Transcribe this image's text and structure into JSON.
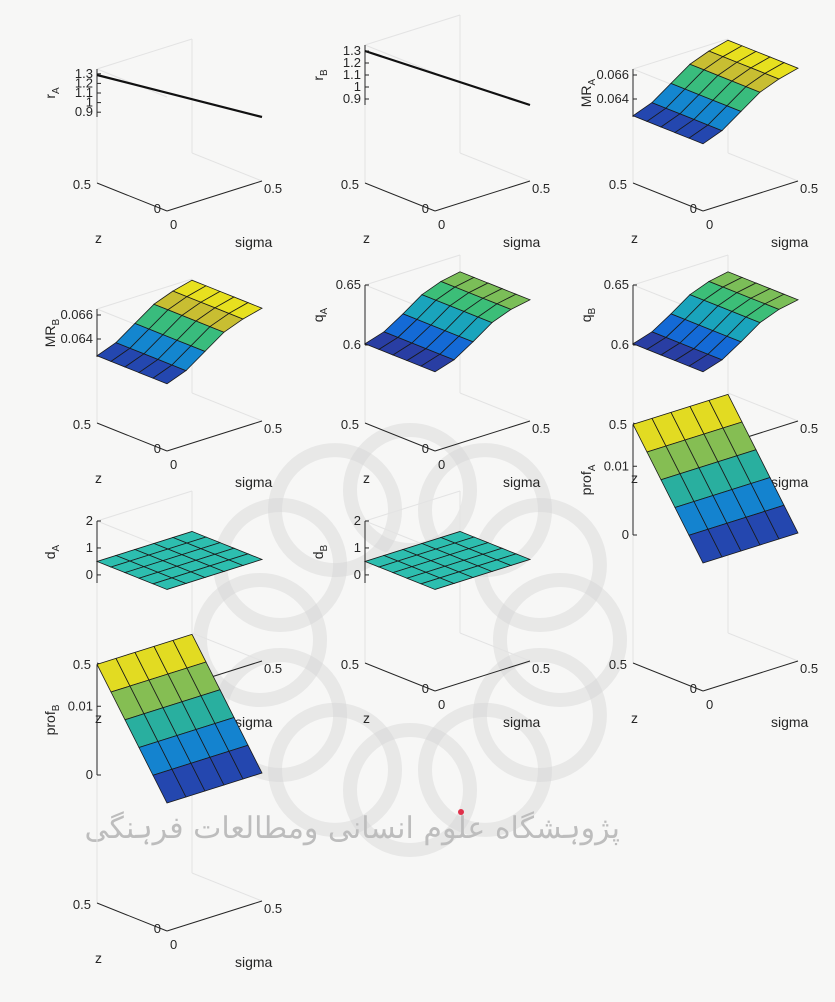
{
  "chart_data": [
    {
      "type": "surface",
      "id": "rA",
      "zlabel_main": "r",
      "zlabel_sub": "A",
      "xlabel": "sigma",
      "ylabel": "z",
      "x": [
        0,
        0.1,
        0.2,
        0.3,
        0.4,
        0.5
      ],
      "y": [
        0,
        0.1,
        0.2,
        0.3,
        0.4,
        0.5
      ],
      "zlim": [
        0.85,
        1.35
      ],
      "zticks": [
        "0.9",
        "1",
        "1.1",
        "1.2",
        "1.3"
      ],
      "xticks": [
        "0",
        "0.5"
      ],
      "yticks": [
        "0",
        "0.5"
      ],
      "render": "line",
      "z_at_y0": [
        0.9,
        1.0,
        1.1,
        1.2,
        1.3,
        1.35
      ],
      "z_slope_y": 0
    },
    {
      "type": "surface",
      "id": "rB",
      "zlabel_main": "r",
      "zlabel_sub": "B",
      "xlabel": "sigma",
      "ylabel": "z",
      "x": [
        0,
        0.1,
        0.2,
        0.3,
        0.4,
        0.5
      ],
      "y": [
        0,
        0.1,
        0.2,
        0.3,
        0.4,
        0.5
      ],
      "zlim": [
        0.85,
        1.35
      ],
      "zticks": [
        "0.9",
        "1",
        "1.1",
        "1.2",
        "1.3"
      ],
      "xticks": [
        "0",
        "0.5"
      ],
      "yticks": [
        "0",
        "0.5"
      ],
      "render": "line",
      "z_at_y0": [
        0.9,
        1.0,
        1.1,
        1.2,
        1.3,
        1.35
      ],
      "z_slope_y": 0
    },
    {
      "type": "surface",
      "id": "MRA",
      "zlabel_main": "MR",
      "zlabel_sub": "A",
      "xlabel": "sigma",
      "ylabel": "z",
      "x": [
        0,
        0.1,
        0.2,
        0.3,
        0.4,
        0.5
      ],
      "y": [
        0,
        0.1,
        0.2,
        0.3,
        0.4,
        0.5
      ],
      "zlim": [
        0.0625,
        0.0665
      ],
      "zticks": [
        "0.064",
        "0.066"
      ],
      "xticks": [
        "0",
        "0.5"
      ],
      "yticks": [
        "0",
        "0.5"
      ],
      "render": "surface",
      "z_at_y0": [
        0.0626,
        0.0632,
        0.0643,
        0.0654,
        0.066,
        0.0664
      ],
      "z_slope_y": 0
    },
    {
      "type": "surface",
      "id": "MRB",
      "zlabel_main": "MR",
      "zlabel_sub": "B",
      "xlabel": "sigma",
      "ylabel": "z",
      "x": [
        0,
        0.1,
        0.2,
        0.3,
        0.4,
        0.5
      ],
      "y": [
        0,
        0.1,
        0.2,
        0.3,
        0.4,
        0.5
      ],
      "zlim": [
        0.0625,
        0.0665
      ],
      "zticks": [
        "0.064",
        "0.066"
      ],
      "xticks": [
        "0",
        "0.5"
      ],
      "yticks": [
        "0",
        "0.5"
      ],
      "render": "surface",
      "z_at_y0": [
        0.0626,
        0.0632,
        0.0643,
        0.0654,
        0.066,
        0.0664
      ],
      "z_slope_y": 0
    },
    {
      "type": "surface",
      "id": "qA",
      "zlabel_main": "q",
      "zlabel_sub": "A",
      "xlabel": "sigma",
      "ylabel": "z",
      "x": [
        0,
        0.1,
        0.2,
        0.3,
        0.4,
        0.5
      ],
      "y": [
        0,
        0.1,
        0.2,
        0.3,
        0.4,
        0.5
      ],
      "zlim": [
        0.6,
        0.65
      ],
      "zticks": [
        "0.6",
        "0.65"
      ],
      "xticks": [
        "0",
        "0.5"
      ],
      "yticks": [
        "0",
        "0.5"
      ],
      "render": "surface",
      "z_at_y0": [
        0.601,
        0.606,
        0.616,
        0.627,
        0.633,
        0.636
      ],
      "z_slope_y": 0
    },
    {
      "type": "surface",
      "id": "qB",
      "zlabel_main": "q",
      "zlabel_sub": "B",
      "xlabel": "sigma",
      "ylabel": "z",
      "x": [
        0,
        0.1,
        0.2,
        0.3,
        0.4,
        0.5
      ],
      "y": [
        0,
        0.1,
        0.2,
        0.3,
        0.4,
        0.5
      ],
      "zlim": [
        0.6,
        0.65
      ],
      "zticks": [
        "0.6",
        "0.65"
      ],
      "xticks": [
        "0",
        "0.5"
      ],
      "yticks": [
        "0",
        "0.5"
      ],
      "render": "surface",
      "z_at_y0": [
        0.601,
        0.606,
        0.616,
        0.627,
        0.633,
        0.636
      ],
      "z_slope_y": 0
    },
    {
      "type": "surface",
      "id": "dA",
      "zlabel_main": "d",
      "zlabel_sub": "A",
      "xlabel": "sigma",
      "ylabel": "z",
      "x": [
        0,
        0.1,
        0.2,
        0.3,
        0.4,
        0.5
      ],
      "y": [
        0,
        0.1,
        0.2,
        0.3,
        0.4,
        0.5
      ],
      "zlim": [
        -0.3,
        2
      ],
      "zticks": [
        "0",
        "1",
        "2"
      ],
      "xticks": [
        "0",
        "0.5"
      ],
      "yticks": [
        "0",
        "0.5"
      ],
      "render": "flat",
      "z_at_y0": [
        0.5,
        0.5,
        0.5,
        0.5,
        0.5,
        0.5
      ],
      "z_slope_y": 0
    },
    {
      "type": "surface",
      "id": "dB",
      "zlabel_main": "d",
      "zlabel_sub": "B",
      "xlabel": "sigma",
      "ylabel": "z",
      "x": [
        0,
        0.1,
        0.2,
        0.3,
        0.4,
        0.5
      ],
      "y": [
        0,
        0.1,
        0.2,
        0.3,
        0.4,
        0.5
      ],
      "zlim": [
        -0.3,
        2
      ],
      "zticks": [
        "0",
        "1",
        "2"
      ],
      "xticks": [
        "0",
        "0.5"
      ],
      "yticks": [
        "0",
        "0.5"
      ],
      "render": "flat",
      "z_at_y0": [
        0.5,
        0.5,
        0.5,
        0.5,
        0.5,
        0.5
      ],
      "z_slope_y": 0
    },
    {
      "type": "surface",
      "id": "profA",
      "zlabel_main": "prof",
      "zlabel_sub": "A",
      "xlabel": "sigma",
      "ylabel": "z",
      "x": [
        0,
        0.1,
        0.2,
        0.3,
        0.4,
        0.5
      ],
      "y": [
        0,
        0.1,
        0.2,
        0.3,
        0.4,
        0.5
      ],
      "zlim": [
        0,
        0.016
      ],
      "zticks": [
        "0",
        "0.01"
      ],
      "xticks": [
        "0",
        "0.5"
      ],
      "yticks": [
        "0",
        "0.5"
      ],
      "render": "surface",
      "z_at_y0": [
        0,
        0,
        0,
        0,
        0,
        0
      ],
      "z_slope_y": 0.0322
    },
    {
      "type": "surface",
      "id": "profB",
      "zlabel_main": "prof",
      "zlabel_sub": "B",
      "xlabel": "sigma",
      "ylabel": "z",
      "x": [
        0,
        0.1,
        0.2,
        0.3,
        0.4,
        0.5
      ],
      "y": [
        0,
        0.1,
        0.2,
        0.3,
        0.4,
        0.5
      ],
      "zlim": [
        0,
        0.016
      ],
      "zticks": [
        "0",
        "0.01"
      ],
      "xticks": [
        "0",
        "0.5"
      ],
      "yticks": [
        "0",
        "0.5"
      ],
      "render": "surface",
      "z_at_y0": [
        0,
        0,
        0,
        0,
        0,
        0
      ],
      "z_slope_y": 0.0322
    }
  ],
  "watermark": {
    "text": "پژوہشگاه علوم انسانی ومطالعات فرہنگی",
    "color": "#c8c8c8"
  },
  "colors": {
    "axis": "#262626",
    "grid": "#e3e3e3",
    "background": "#f7f7f6",
    "edge": "#1a1a1a"
  }
}
